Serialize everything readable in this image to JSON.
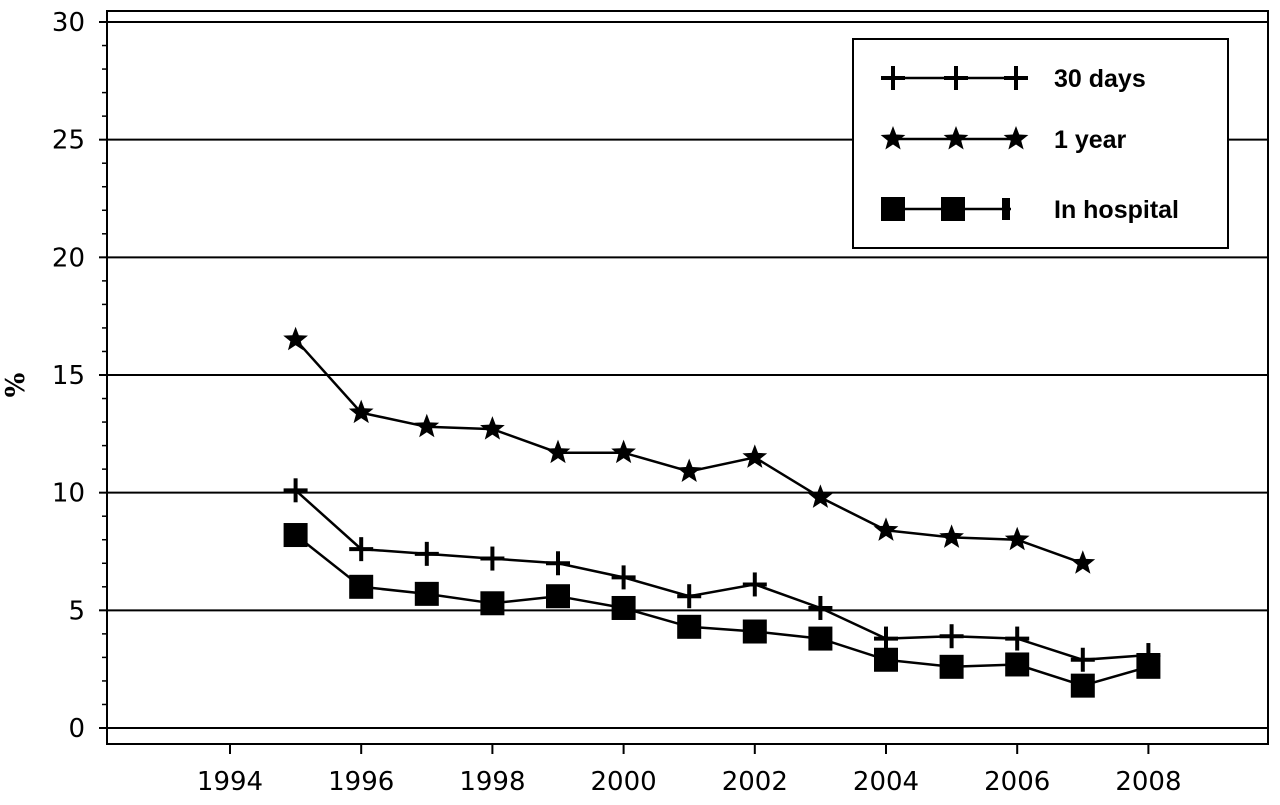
{
  "chart_data": {
    "type": "line",
    "title": "",
    "xlabel": "",
    "ylabel": "%",
    "xlim": [
      1992,
      2010
    ],
    "ylim": [
      0,
      30
    ],
    "x_ticks": [
      "1994",
      "1996",
      "1998",
      "2000",
      "2002",
      "2004",
      "2006",
      "2008"
    ],
    "y_ticks": [
      "0",
      "5",
      "10",
      "15",
      "20",
      "25",
      "30"
    ],
    "grid": "horizontal",
    "legend_position": "top-right",
    "series": [
      {
        "name": "30 days",
        "marker": "plus",
        "x": [
          1995,
          1996,
          1997,
          1998,
          1999,
          2000,
          2001,
          2002,
          2003,
          2004,
          2005,
          2006,
          2007,
          2008
        ],
        "values": [
          10.1,
          7.6,
          7.4,
          7.2,
          7.0,
          6.4,
          5.6,
          6.1,
          5.1,
          3.8,
          3.9,
          3.8,
          2.9,
          3.1
        ]
      },
      {
        "name": "1 year",
        "marker": "star",
        "x": [
          1995,
          1996,
          1997,
          1998,
          1999,
          2000,
          2001,
          2002,
          2003,
          2004,
          2005,
          2006,
          2007
        ],
        "values": [
          16.5,
          13.4,
          12.8,
          12.7,
          11.7,
          11.7,
          10.9,
          11.5,
          9.8,
          8.4,
          8.1,
          8.0,
          7.0
        ]
      },
      {
        "name": "In hospital",
        "marker": "square",
        "x": [
          1995,
          1996,
          1997,
          1998,
          1999,
          2000,
          2001,
          2002,
          2003,
          2004,
          2005,
          2006,
          2007,
          2008
        ],
        "values": [
          8.2,
          6.0,
          5.7,
          5.3,
          5.6,
          5.1,
          4.3,
          4.1,
          3.8,
          2.9,
          2.6,
          2.7,
          1.8,
          2.6
        ]
      }
    ]
  },
  "colors": {
    "line": "#000000",
    "background": "#ffffff"
  }
}
